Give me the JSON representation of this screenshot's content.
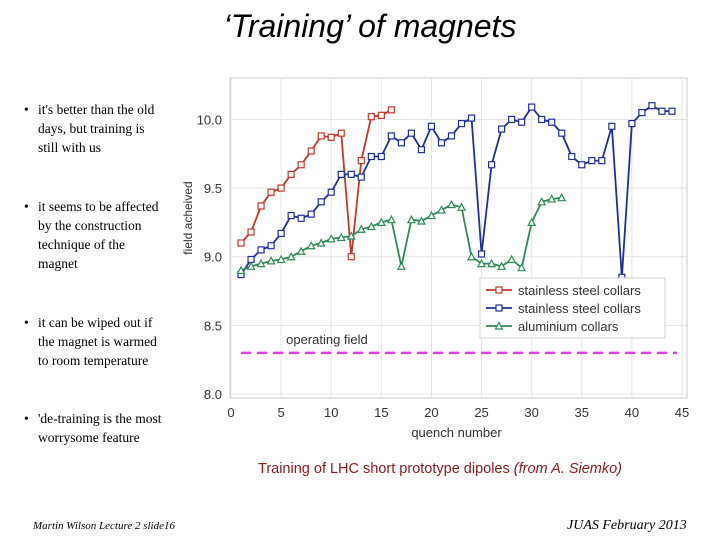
{
  "slide": {
    "title": "‘Training’ of magnets",
    "bullets": [
      "it's better than the old days, but training is still with us",
      "it seems to be affected by the construction technique of the magnet",
      "it can be wiped out if the magnet is warmed to room temperature",
      "'de-training is the most worrysome feature"
    ],
    "caption_main": "Training of LHC short prototype dipoles ",
    "caption_source": "(from A. Siemko)",
    "footer_left": "Martin Wilson Lecture 2 slide16",
    "footer_right": "JUAS February 2013"
  },
  "chart_data": {
    "type": "line",
    "xlabel": "quench number",
    "ylabel": "field acheived",
    "xlim": [
      0,
      45
    ],
    "ylim": [
      8.0,
      10.2
    ],
    "xticks": [
      "0",
      "5",
      "10",
      "15",
      "20",
      "25",
      "30",
      "35",
      "40",
      "45"
    ],
    "yticks": [
      "8.0",
      "8.5",
      "9.0",
      "9.5",
      "10.0"
    ],
    "legend_position": "bottom-right",
    "operating_field": {
      "label": "operating field",
      "value": 8.3,
      "color": "#e040e0"
    },
    "series": [
      {
        "name": "stainless steel collars",
        "color": "#c0392b",
        "marker": "square",
        "x": [
          1,
          2,
          3,
          4,
          5,
          6,
          7,
          8,
          9,
          10,
          11,
          12,
          13,
          14,
          15,
          16
        ],
        "y": [
          9.1,
          9.18,
          9.37,
          9.47,
          9.5,
          9.6,
          9.67,
          9.77,
          9.88,
          9.87,
          9.9,
          9.0,
          9.7,
          10.02,
          10.03,
          10.07
        ]
      },
      {
        "name": "stainless steel collars",
        "color": "#1f2f9a",
        "marker": "square",
        "x": [
          1,
          2,
          3,
          4,
          5,
          6,
          7,
          8,
          9,
          10,
          11,
          12,
          13,
          14,
          15,
          16,
          17,
          18,
          19,
          20,
          21,
          22,
          23,
          24,
          25,
          26,
          27,
          28,
          29,
          30,
          31,
          32,
          33,
          34,
          35,
          36,
          37,
          38,
          39,
          40,
          41,
          42,
          43,
          44
        ],
        "y": [
          8.87,
          8.98,
          9.05,
          9.08,
          9.17,
          9.3,
          9.28,
          9.31,
          9.4,
          9.47,
          9.6,
          9.6,
          9.58,
          9.73,
          9.73,
          9.88,
          9.83,
          9.9,
          9.78,
          9.95,
          9.83,
          9.88,
          9.97,
          10.01,
          9.02,
          9.67,
          9.93,
          10.0,
          9.98,
          10.09,
          10.0,
          9.98,
          9.9,
          9.73,
          9.67,
          9.7,
          9.7,
          9.95,
          8.85,
          9.97,
          10.05,
          10.1,
          10.06,
          10.06
        ]
      },
      {
        "name": "aluminium collars",
        "color": "#2e8b57",
        "marker": "triangle",
        "x": [
          1,
          2,
          3,
          4,
          5,
          6,
          7,
          8,
          9,
          10,
          11,
          12,
          13,
          14,
          15,
          16,
          17,
          18,
          19,
          20,
          21,
          22,
          23,
          24,
          25,
          26,
          27,
          28,
          29,
          30,
          31,
          32,
          33
        ],
        "y": [
          8.9,
          8.93,
          8.95,
          8.97,
          8.98,
          9.0,
          9.04,
          9.08,
          9.1,
          9.13,
          9.14,
          9.15,
          9.2,
          9.22,
          9.25,
          9.27,
          8.93,
          9.27,
          9.26,
          9.3,
          9.34,
          9.38,
          9.36,
          9.0,
          8.95,
          8.95,
          8.93,
          8.98,
          8.92,
          9.25,
          9.4,
          9.42,
          9.43
        ]
      }
    ]
  }
}
